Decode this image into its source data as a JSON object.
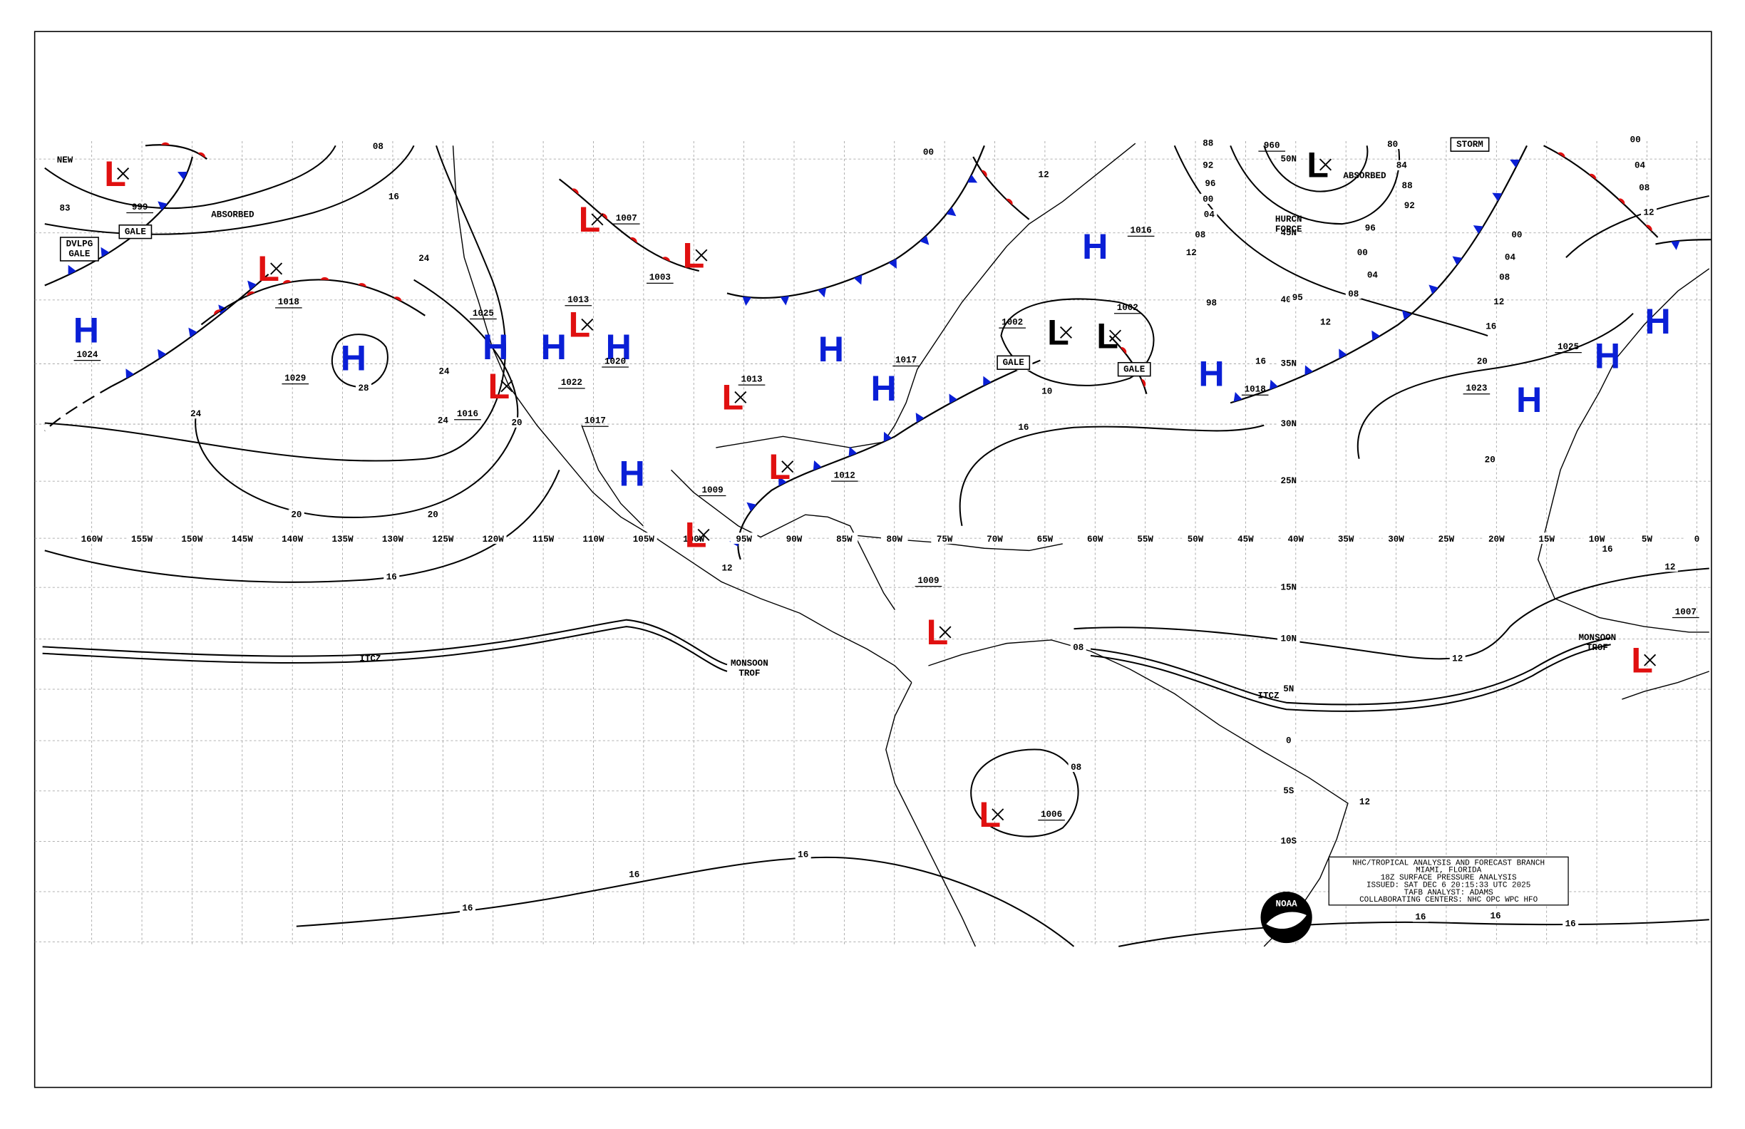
{
  "map": {
    "centers": [
      {
        "symbol": "H",
        "pressure": "1024",
        "color": "#0a1fd6"
      },
      {
        "symbol": "H",
        "pressure": "1029",
        "color": "#0a1fd6"
      },
      {
        "symbol": "L",
        "pressure": "999",
        "color": "#e01010"
      },
      {
        "symbol": "L",
        "pressure": "1018",
        "color": "#e01010"
      },
      {
        "symbol": "H",
        "pressure": "1025",
        "color": "#0a1fd6"
      },
      {
        "symbol": "H",
        "pressure": "1022",
        "color": "#0a1fd6"
      },
      {
        "symbol": "L",
        "pressure": "1013",
        "color": "#e01010"
      },
      {
        "symbol": "H",
        "pressure": "1020",
        "color": "#0a1fd6"
      },
      {
        "symbol": "L",
        "pressure": "1007",
        "color": "#e01010"
      },
      {
        "symbol": "L",
        "pressure": "1003",
        "color": "#e01010"
      },
      {
        "symbol": "L",
        "pressure": "1013",
        "color": "#e01010"
      },
      {
        "symbol": "H",
        "pressure": "1017",
        "color": "#0a1fd6"
      },
      {
        "symbol": "H",
        "color": "#0a1fd6"
      },
      {
        "symbol": "L",
        "pressure": "1016",
        "color": "#e01010"
      },
      {
        "symbol": "H",
        "pressure": "1017",
        "color": "#0a1fd6"
      },
      {
        "symbol": "L",
        "pressure": "1012",
        "color": "#e01010"
      },
      {
        "symbol": "L",
        "pressure": "1009",
        "color": "#e01010"
      },
      {
        "symbol": "L",
        "pressure": "1009",
        "color": "#e01010"
      },
      {
        "symbol": "L",
        "pressure": "1006",
        "color": "#e01010"
      },
      {
        "symbol": "H",
        "pressure": "1016",
        "color": "#0a1fd6"
      },
      {
        "symbol": "L",
        "pressure": "1002",
        "color": "#000000"
      },
      {
        "symbol": "L",
        "pressure": "1002",
        "color": "#000000"
      },
      {
        "symbol": "H",
        "pressure": "1018",
        "color": "#0a1fd6"
      },
      {
        "symbol": "H",
        "pressure": "1023",
        "color": "#0a1fd6"
      },
      {
        "symbol": "H",
        "pressure": "1025",
        "color": "#0a1fd6"
      },
      {
        "symbol": "H",
        "color": "#0a1fd6"
      },
      {
        "symbol": "L",
        "pressure": "1007",
        "color": "#e01010"
      },
      {
        "symbol": "L",
        "pressure": "960",
        "color": "#000000"
      }
    ],
    "isobar_labels": [
      "24",
      "28",
      "24",
      "24",
      "24",
      "20",
      "20",
      "20",
      "16",
      "16",
      "16",
      "16",
      "12",
      "12",
      "12",
      "16",
      "16",
      "20",
      "20",
      "16",
      "12",
      "08",
      "04",
      "00",
      "12",
      "08",
      "04",
      "08",
      "12",
      "00",
      "96",
      "92",
      "88",
      "84",
      "80",
      "88",
      "92",
      "96",
      "00",
      "04",
      "08",
      "10",
      "16",
      "16",
      "08",
      "00",
      "12",
      "08",
      "16",
      "16",
      "16",
      "08",
      "12",
      "83",
      "00",
      "04",
      "08",
      "12",
      "98",
      "95"
    ],
    "annotations": [
      "NEW",
      "ABSORBED",
      "ABSORBED",
      "HURCN FORCE",
      "ITCZ",
      "MONSOON TROF",
      "ITCZ",
      "MONSOON TROF"
    ],
    "boxed_labels": [
      "GALE",
      "DVLPG GALE",
      "STORM",
      "GALE",
      "GALE"
    ],
    "longitude_labels": [
      "160W",
      "155W",
      "150W",
      "145W",
      "140W",
      "135W",
      "130W",
      "125W",
      "120W",
      "115W",
      "110W",
      "105W",
      "100W",
      "95W",
      "90W",
      "85W",
      "80W",
      "75W",
      "70W",
      "65W",
      "60W",
      "55W",
      "50W",
      "45W",
      "40W",
      "35W",
      "30W",
      "25W",
      "20W",
      "15W",
      "10W",
      "5W",
      "0"
    ],
    "latitude_labels": [
      "50N",
      "45N",
      "40N",
      "35N",
      "30N",
      "25N",
      "15N",
      "10N",
      "5N",
      "0",
      "5S",
      "10S"
    ],
    "info_box": [
      "NHC/TROPICAL ANALYSIS AND FORECAST BRANCH",
      "MIAMI, FLORIDA",
      "18Z SURFACE PRESSURE ANALYSIS",
      "ISSUED: SAT DEC 6 20:15:33 UTC 2025",
      "TAFB ANALYST: ADAMS",
      "COLLABORATING CENTERS: NHC OPC WPC HFO"
    ],
    "logo": "NOAA"
  }
}
